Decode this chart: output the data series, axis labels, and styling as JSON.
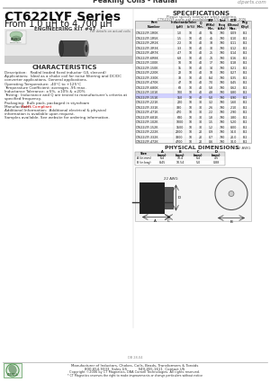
{
  "title_top": "Peaking Coils - Radial",
  "website": "ctparts.com",
  "series_name": "CT622LYF Series",
  "series_sub": "From 1.0 μH to 4,700 μH",
  "eng_kit": "ENGINEERING KIT #47",
  "characteristics_title": "CHARACTERISTICS",
  "char_lines": [
    "Description:   Radial leaded fixed inductor (UL sleeved)",
    "Applications:  Ideal as a choke coil for noise filtering and DC/DC",
    "converter applications. General applications.",
    "Operating Temperature: -40°C to +125°C",
    "Temperature Coefficient: averages -95 max.",
    "Inductance Tolerance: ±5%, ±10% & ±20%",
    "Testing:  Inductance and Q are tested to manufacturer’s criteria at",
    "specified frequency.",
    "Packaging:  Bulk pack, packaged in styrofoam",
    "Manufacturer: RoHS Compliant",
    "Additional Information:  Additional electrical & physical",
    "information is available upon request.",
    "Samples available. See website for ordering information."
  ],
  "spec_title": "SPECIFICATIONS",
  "spec_note1": "Please specify tolerance when ordering.",
  "spec_note2": "CT622LYF parts are available in 5%, 10% and 20%",
  "spec_headers": [
    "Part\nNumber",
    "Inductance\n(μH)",
    "L Toler\n(Plus\nMinus)\n(%)",
    "Q\n(Rated)\nMin.",
    "SRF Rated\n(Freq\n(MHz)\nMin.",
    "SRF\nElim.\n(kHz)",
    "DCR\n(Ohms)\nMax.",
    "Packagi\n(Qty)"
  ],
  "spec_data": [
    [
      "CT622LYF-1R0K",
      "1.0",
      "10",
      "40",
      "55",
      "790",
      "0.09",
      "B:2"
    ],
    [
      "CT622LYF-1R5K",
      "1.5",
      "10",
      "40",
      "45",
      "790",
      "0.10",
      "B:2"
    ],
    [
      "CT622LYF-2R2K",
      "2.2",
      "10",
      "40",
      "38",
      "790",
      "0.11",
      "B:2"
    ],
    [
      "CT622LYF-3R3K",
      "3.3",
      "10",
      "40",
      "30",
      "790",
      "0.12",
      "B:2"
    ],
    [
      "CT622LYF-4R7K",
      "4.7",
      "10",
      "40",
      "25",
      "790",
      "0.14",
      "B:2"
    ],
    [
      "CT622LYF-6R8K",
      "6.8",
      "10",
      "40",
      "21",
      "790",
      "0.16",
      "B:2"
    ],
    [
      "CT622LYF-100K",
      "10",
      "10",
      "40",
      "17",
      "790",
      "0.18",
      "B:2"
    ],
    [
      "CT622LYF-150K",
      "15",
      "10",
      "40",
      "14",
      "790",
      "0.21",
      "B:2"
    ],
    [
      "CT622LYF-220K",
      "22",
      "10",
      "40",
      "10",
      "790",
      "0.27",
      "B:2"
    ],
    [
      "CT622LYF-330K",
      "33",
      "10",
      "40",
      "8.4",
      "790",
      "0.35",
      "B:2"
    ],
    [
      "CT622LYF-470K",
      "47",
      "10",
      "40",
      "7.0",
      "790",
      "0.45",
      "B:2"
    ],
    [
      "CT622LYF-680K",
      "68",
      "10",
      "40",
      "5.8",
      "790",
      "0.62",
      "B:2"
    ],
    [
      "CT622LYF-101K",
      "100",
      "10",
      "40",
      "4.8",
      "790",
      "0.80",
      "B:2"
    ],
    [
      "CT622LYF-151K",
      "150",
      "10",
      "40",
      "5.0",
      "790",
      "0.90",
      "B:2"
    ],
    [
      "CT622LYF-221K",
      "220",
      "10",
      "30",
      "3.2",
      "790",
      "1.60",
      "B:2"
    ],
    [
      "CT622LYF-331K",
      "330",
      "10",
      "30",
      "2.6",
      "790",
      "2.10",
      "B:2"
    ],
    [
      "CT622LYF-471K",
      "470",
      "10",
      "30",
      "2.2",
      "790",
      "2.90",
      "B:2"
    ],
    [
      "CT622LYF-681K",
      "680",
      "10",
      "30",
      "1.8",
      "790",
      "3.80",
      "B:2"
    ],
    [
      "CT622LYF-102K",
      "1000",
      "10",
      "30",
      "1.5",
      "790",
      "5.20",
      "B:2"
    ],
    [
      "CT622LYF-152K",
      "1500",
      "10",
      "30",
      "1.2",
      "790",
      "8.00",
      "B:2"
    ],
    [
      "CT622LYF-222K",
      "2200",
      "10",
      "20",
      "0.9",
      "790",
      "14.0",
      "B:2"
    ],
    [
      "CT622LYF-332K",
      "3300",
      "10",
      "20",
      "0.7",
      "790",
      "20.0",
      "B:2"
    ],
    [
      "CT622LYF-472K",
      "4700",
      "10",
      "20",
      "0.6",
      "790",
      "30.0",
      "B:2"
    ]
  ],
  "highlighted_row": 13,
  "highlighted_color": "#d0d0ff",
  "dim_title": "PHYSICAL DIMENSIONS",
  "dim_wire_top": "22 AWG",
  "dim_wire_bot": "20 AWG",
  "dim_headers": [
    "Size",
    "A",
    "B",
    "C",
    "D"
  ],
  "dim_units": [
    "",
    "mm",
    "mm",
    "mm",
    "mm"
  ],
  "dim_vals_a": [
    "A (in mm)",
    "6.4",
    "10.4",
    "6.4",
    "4.5"
  ],
  "dim_vals_b": [
    "B (in bag)",
    "8.45",
    "10.54",
    "5.0",
    "0.88"
  ],
  "footer_line1": "Manufacturer of Inductors, Chokes, Coils, Beads, Transformers & Toroids",
  "footer_line2": "800-654-9333  Sales US          949-455-1611  Contact US",
  "footer_line3": "Copyright ©2006 by CT Magnetics, DBA Cornell Technologies. All rights reserved.",
  "footer_line4": "* CT Magnetics reserves the right to make improvements or change particulars without notice",
  "bg_color": "#ffffff",
  "gray_color": "#dddddd"
}
